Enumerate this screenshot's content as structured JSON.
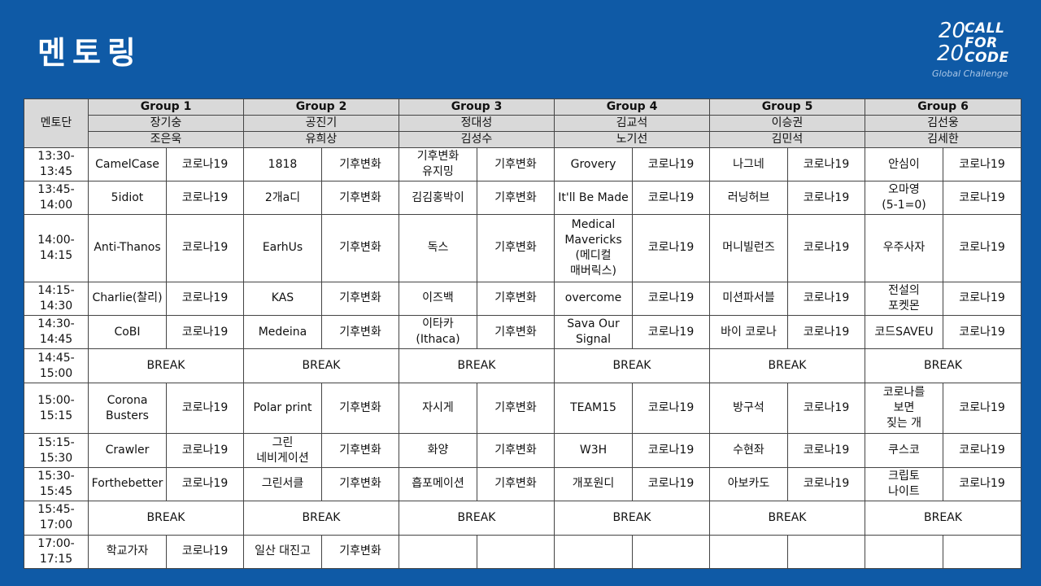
{
  "title": "멘토링",
  "logo": {
    "year_top": "20",
    "year_bottom": "20",
    "word1": "CALL",
    "word2": "FOR",
    "word3": "CODE",
    "sub": "Global Challenge"
  },
  "mentor_label": "멘토단",
  "groups": [
    {
      "name": "Group 1",
      "mentor1": "장기숭",
      "mentor2": "조은욱"
    },
    {
      "name": "Group 2",
      "mentor1": "공진기",
      "mentor2": "유희상"
    },
    {
      "name": "Group 3",
      "mentor1": "정대성",
      "mentor2": "김성수"
    },
    {
      "name": "Group 4",
      "mentor1": "김교석",
      "mentor2": "노기선"
    },
    {
      "name": "Group 5",
      "mentor1": "이승권",
      "mentor2": "김민석"
    },
    {
      "name": "Group 6",
      "mentor1": "김선웅",
      "mentor2": "김세한"
    }
  ],
  "rows": [
    {
      "time": "13:30-\n13:45",
      "cells": [
        [
          "CamelCase",
          "코로나19"
        ],
        [
          "1818",
          "기후변화"
        ],
        [
          "기후변화\n유지밍",
          "기후변화"
        ],
        [
          "Grovery",
          "코로나19"
        ],
        [
          "나그네",
          "코로나19"
        ],
        [
          "안심이",
          "코로나19"
        ]
      ]
    },
    {
      "time": "13:45-\n14:00",
      "cells": [
        [
          "5idiot",
          "코로나19"
        ],
        [
          "2개a디",
          "기후변화"
        ],
        [
          "김김홍박이",
          "기후변화"
        ],
        [
          "It'll Be Made",
          "코로나19"
        ],
        [
          "러닝허브",
          "코로나19"
        ],
        [
          "오마영\n(5-1=0)",
          "코로나19"
        ]
      ]
    },
    {
      "time": "14:00-\n14:15",
      "cells": [
        [
          "Anti-Thanos",
          "코로나19"
        ],
        [
          "EarhUs",
          "기후변화"
        ],
        [
          "독스",
          "기후변화"
        ],
        [
          "Medical\nMavericks\n(메디컬\n매버릭스)",
          "코로나19"
        ],
        [
          "머니빌런즈",
          "코로나19"
        ],
        [
          "우주사자",
          "코로나19"
        ]
      ]
    },
    {
      "time": "14:15-\n14:30",
      "cells": [
        [
          "Charlie(찰리)",
          "코로나19"
        ],
        [
          "KAS",
          "기후변화"
        ],
        [
          "이즈백",
          "기후변화"
        ],
        [
          "overcome",
          "코로나19"
        ],
        [
          "미션파서블",
          "코로나19"
        ],
        [
          "전설의\n포켓몬",
          "코로나19"
        ]
      ]
    },
    {
      "time": "14:30-\n14:45",
      "cells": [
        [
          "CoBI",
          "코로나19"
        ],
        [
          "Medeina",
          "기후변화"
        ],
        [
          "이타카\n(Ithaca)",
          "기후변화"
        ],
        [
          "Sava Our\nSignal",
          "코로나19"
        ],
        [
          "바이 코로나",
          "코로나19"
        ],
        [
          "코드SAVEU",
          "코로나19"
        ]
      ]
    },
    {
      "time": "14:45-\n15:00",
      "break": "BREAK"
    },
    {
      "time": "15:00-\n15:15",
      "cells": [
        [
          "Corona\nBusters",
          "코로나19"
        ],
        [
          "Polar print",
          "기후변화"
        ],
        [
          "자시게",
          "기후변화"
        ],
        [
          "TEAM15",
          "코로나19"
        ],
        [
          "방구석",
          "코로나19"
        ],
        [
          "코로나를\n보면\n짖는 개",
          "코로나19"
        ]
      ]
    },
    {
      "time": "15:15-\n15:30",
      "cells": [
        [
          "Crawler",
          "코로나19"
        ],
        [
          "그린\n네비게이션",
          "기후변화"
        ],
        [
          "화양",
          "기후변화"
        ],
        [
          "W3H",
          "코로나19"
        ],
        [
          "수현좌",
          "코로나19"
        ],
        [
          "쿠스코",
          "코로나19"
        ]
      ]
    },
    {
      "time": "15:30-\n15:45",
      "cells": [
        [
          "Forthebetter",
          "코로나19"
        ],
        [
          "그린서클",
          "기후변화"
        ],
        [
          "흡포메이션",
          "기후변화"
        ],
        [
          "개포원디",
          "코로나19"
        ],
        [
          "아보카도",
          "코로나19"
        ],
        [
          "크립토\n나이트",
          "코로나19"
        ]
      ]
    },
    {
      "time": "15:45-\n17:00",
      "break": "BREAK"
    },
    {
      "time": "17:00-\n17:15",
      "cells": [
        [
          "학교가자",
          "코로나19"
        ],
        [
          "일산 대진고",
          "기후변화"
        ],
        [
          "",
          ""
        ],
        [
          "",
          ""
        ],
        [
          "",
          ""
        ],
        [
          "",
          ""
        ]
      ]
    }
  ]
}
